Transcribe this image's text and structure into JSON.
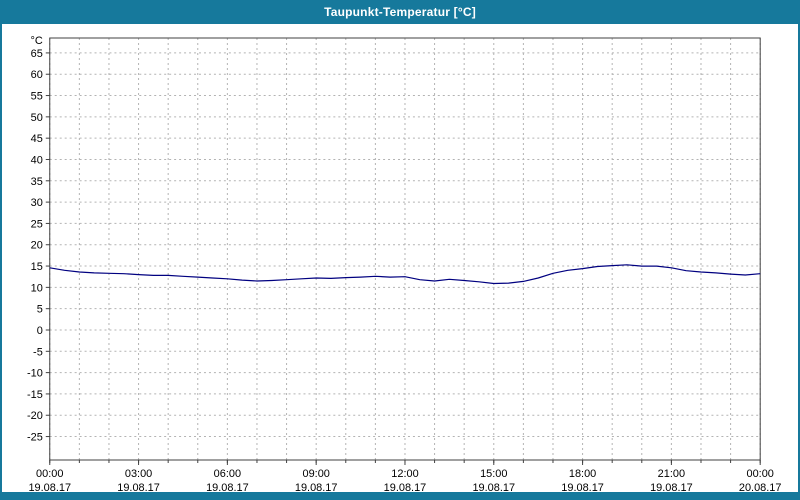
{
  "window": {
    "title": "Taupunkt-Temperatur [°C]"
  },
  "colors": {
    "titlebar": "#16799c",
    "frame": "#16799c",
    "grid": "#b3b3b3",
    "axis": "#404040",
    "line": "#000080",
    "plot_bg": "#ffffff"
  },
  "chart_data": {
    "type": "line",
    "title": "Taupunkt-Temperatur [°C]",
    "xlabel": "",
    "ylabel": "°C",
    "ylim": [
      -30.5,
      68.5
    ],
    "xlim_hours": [
      0,
      24
    ],
    "grid": {
      "x_step_hours": 1,
      "y_step": 5,
      "style": "dashed"
    },
    "legend": "none",
    "y_ticks": [
      65,
      60,
      55,
      50,
      45,
      40,
      35,
      30,
      25,
      20,
      15,
      10,
      5,
      0,
      -5,
      -10,
      -15,
      -20,
      -25
    ],
    "x_ticks": [
      {
        "hour": 0,
        "time": "00:00",
        "date": "19.08.17"
      },
      {
        "hour": 3,
        "time": "03:00",
        "date": "19.08.17"
      },
      {
        "hour": 6,
        "time": "06:00",
        "date": "19.08.17"
      },
      {
        "hour": 9,
        "time": "09:00",
        "date": "19.08.17"
      },
      {
        "hour": 12,
        "time": "12:00",
        "date": "19.08.17"
      },
      {
        "hour": 15,
        "time": "15:00",
        "date": "19.08.17"
      },
      {
        "hour": 18,
        "time": "18:00",
        "date": "19.08.17"
      },
      {
        "hour": 21,
        "time": "21:00",
        "date": "19.08.17"
      },
      {
        "hour": 24,
        "time": "00:00",
        "date": "20.08.17"
      }
    ],
    "series": [
      {
        "name": "Taupunkt-Temperatur",
        "color": "#000080",
        "x": [
          0,
          0.5,
          1,
          1.5,
          2,
          2.5,
          3,
          3.5,
          4,
          4.5,
          5,
          5.5,
          6,
          6.5,
          7,
          7.5,
          8,
          8.5,
          9,
          9.5,
          10,
          10.5,
          11,
          11.5,
          12,
          12.5,
          13,
          13.5,
          14,
          14.5,
          15,
          15.5,
          16,
          16.5,
          17,
          17.5,
          18,
          18.5,
          19,
          19.5,
          20,
          20.5,
          21,
          21.5,
          22,
          22.5,
          23,
          23.5,
          24
        ],
        "y": [
          14.6,
          14.0,
          13.6,
          13.4,
          13.3,
          13.2,
          13.0,
          12.8,
          12.8,
          12.6,
          12.4,
          12.2,
          12.0,
          11.7,
          11.5,
          11.6,
          11.8,
          12.0,
          12.2,
          12.1,
          12.3,
          12.4,
          12.6,
          12.4,
          12.5,
          11.8,
          11.5,
          11.9,
          11.6,
          11.3,
          10.9,
          11.0,
          11.4,
          12.2,
          13.3,
          14.0,
          14.4,
          14.9,
          15.1,
          15.3,
          15.0,
          15.0,
          14.6,
          13.9,
          13.6,
          13.4,
          13.1,
          12.9,
          13.2
        ]
      }
    ]
  }
}
